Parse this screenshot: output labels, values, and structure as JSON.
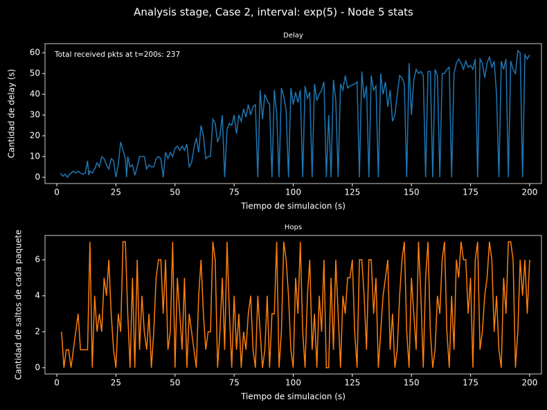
{
  "title": "Analysis stage, Case 2, interval: exp(5) - Node 5 stats",
  "chart_data": [
    {
      "type": "line",
      "title": "Delay",
      "xlabel": "Tiempo de simulacion (s)",
      "ylabel": "Cantidad de delay (s)",
      "annotation": "Total received pkts at t=200s: 237",
      "color": "#1f77b4",
      "xlim": [
        -5,
        205
      ],
      "xticks": [
        0,
        25,
        50,
        75,
        100,
        125,
        150,
        175,
        200
      ],
      "ylim": [
        -3,
        64.4
      ],
      "yticks": [
        0,
        10,
        20,
        30,
        40,
        50,
        60
      ],
      "x": [
        1.5,
        2.5,
        3.5,
        4.5,
        5.5,
        7,
        8,
        9,
        10,
        11,
        12,
        13,
        13.5,
        14,
        15,
        16,
        17,
        18,
        19,
        20,
        21,
        22,
        23,
        24,
        25,
        26,
        27,
        28,
        29,
        29.5,
        30,
        31,
        32,
        33,
        34,
        35,
        36,
        37,
        38,
        39,
        40,
        41,
        42,
        43,
        44,
        45,
        46,
        47,
        48,
        49,
        50,
        51,
        52,
        53,
        54,
        55,
        56,
        57,
        58,
        59,
        60,
        61,
        62,
        63,
        64,
        65,
        66,
        67,
        68,
        69,
        70,
        71,
        72,
        73,
        74,
        75,
        76,
        77,
        78,
        79,
        80,
        81,
        82,
        83,
        84,
        85,
        86,
        87,
        88,
        89,
        90,
        91,
        92,
        93,
        94,
        95,
        96,
        97,
        98,
        99,
        100,
        101,
        102,
        103,
        104,
        105,
        106,
        107,
        108,
        109,
        110,
        111,
        112,
        113,
        114,
        115,
        116,
        117,
        118,
        119,
        120,
        121,
        122,
        123,
        124,
        126,
        127,
        128,
        129,
        130,
        131,
        132,
        133,
        134,
        135,
        136,
        137,
        138,
        139,
        140,
        141,
        142,
        143,
        144,
        145,
        146,
        147,
        148,
        149,
        150,
        151,
        152,
        153,
        154,
        155,
        156,
        157,
        158,
        159,
        160,
        161,
        162,
        163,
        164,
        165,
        166,
        167,
        168,
        169,
        170,
        171,
        172,
        173,
        174,
        175,
        176,
        177,
        178,
        179,
        180,
        181,
        182,
        183,
        184,
        185,
        186,
        187,
        188,
        189,
        190,
        191,
        192,
        193,
        194,
        195,
        196,
        197,
        198,
        199,
        200
      ],
      "values": [
        2,
        0.5,
        1.5,
        0,
        1.5,
        3,
        2,
        3,
        2,
        1.5,
        2,
        8,
        1,
        3,
        2,
        4,
        7,
        5,
        10,
        9,
        6,
        4,
        9,
        8,
        0,
        6,
        17,
        13,
        9,
        0,
        10,
        5,
        6,
        1,
        5,
        10,
        10,
        10,
        4,
        6,
        5,
        5,
        9,
        10,
        9,
        0,
        12,
        9,
        12,
        10,
        14,
        15,
        13,
        15,
        13,
        16,
        5,
        7,
        14,
        19,
        12,
        25,
        20,
        9,
        10,
        10,
        28,
        26,
        17,
        20,
        30,
        0,
        23,
        26,
        25,
        30,
        21,
        30,
        27,
        33,
        29,
        35,
        30,
        34,
        35,
        0,
        42,
        28,
        40,
        37,
        35,
        0,
        42,
        31,
        0,
        43,
        39,
        32,
        0,
        43,
        35,
        41,
        36,
        42,
        0,
        44,
        38,
        41,
        0,
        45,
        37,
        40,
        42,
        46,
        0,
        30,
        0,
        47,
        37,
        0,
        45,
        42,
        49,
        43,
        44,
        45,
        46,
        0,
        51,
        38,
        44,
        0,
        49,
        42,
        44,
        0,
        50,
        40,
        46,
        34,
        42,
        27,
        30,
        40,
        49,
        48,
        45,
        0,
        55,
        30,
        47,
        52,
        50,
        51,
        49,
        0,
        51,
        51,
        0,
        52,
        49,
        0,
        50,
        50,
        52,
        53,
        0,
        50,
        55,
        57,
        55,
        52,
        56,
        53,
        54,
        52,
        57,
        0,
        57,
        55,
        48,
        55,
        58,
        53,
        56,
        40,
        0,
        56,
        52,
        57,
        0,
        56,
        52,
        50,
        61,
        60,
        0,
        59,
        57,
        59
      ]
    },
    {
      "type": "line",
      "title": "Hops",
      "xlabel": "Tiempo de simulacion (s)",
      "ylabel": "Cantidad de saltos de cada paquete",
      "color": "#ff7f0e",
      "xlim": [
        -5,
        205
      ],
      "xticks": [
        0,
        25,
        50,
        75,
        100,
        125,
        150,
        175,
        200
      ],
      "ylim": [
        -0.35,
        7.35
      ],
      "yticks": [
        0,
        2,
        4,
        6
      ],
      "x": [
        2,
        3,
        4,
        5,
        6,
        7,
        8,
        9,
        10,
        11,
        12,
        13,
        14,
        15,
        16,
        17,
        18,
        19,
        20,
        21,
        22,
        23,
        24,
        25,
        26,
        27,
        28,
        29,
        30,
        31,
        32,
        33,
        34,
        35,
        36,
        37,
        38,
        39,
        40,
        41,
        42,
        43,
        44,
        45,
        46,
        47,
        48,
        49,
        50,
        51,
        52,
        53,
        54,
        55,
        56,
        57,
        58,
        59,
        60,
        61,
        62,
        63,
        64,
        65,
        66,
        67,
        68,
        69,
        70,
        71,
        72,
        73,
        74,
        75,
        76,
        77,
        78,
        79,
        80,
        81,
        82,
        83,
        84,
        85,
        86,
        87,
        88,
        89,
        90,
        91,
        92,
        93,
        94,
        95,
        96,
        97,
        98,
        99,
        100,
        101,
        102,
        103,
        104,
        105,
        106,
        107,
        108,
        109,
        110,
        111,
        112,
        113,
        114,
        115,
        116,
        117,
        118,
        119,
        120,
        121,
        122,
        123,
        124,
        125,
        126,
        127,
        128,
        129,
        130,
        131,
        132,
        133,
        134,
        135,
        136,
        137,
        138,
        139,
        140,
        141,
        142,
        143,
        144,
        145,
        146,
        147,
        148,
        149,
        150,
        151,
        152,
        153,
        154,
        155,
        156,
        157,
        158,
        159,
        160,
        161,
        162,
        163,
        164,
        165,
        166,
        167,
        168,
        169,
        170,
        171,
        172,
        173,
        174,
        175,
        176,
        177,
        178,
        179,
        180,
        181,
        182,
        183,
        184,
        185,
        186,
        187,
        188,
        189,
        190,
        191,
        192,
        193,
        194,
        195,
        196,
        197,
        198,
        199,
        200
      ],
      "values": [
        2,
        0,
        1,
        1,
        0,
        1,
        2,
        3,
        1,
        1,
        1,
        1,
        7,
        0,
        4,
        2,
        3,
        2,
        5,
        4,
        6,
        3,
        1,
        0,
        3,
        2,
        7,
        7,
        3,
        0,
        5,
        0,
        6,
        1,
        4,
        2,
        1,
        3,
        0,
        2,
        5,
        6,
        6,
        3,
        6,
        1,
        2,
        7,
        0,
        5,
        3,
        1,
        5,
        0,
        3,
        2,
        1,
        0,
        4,
        6,
        3,
        1,
        2,
        2,
        7,
        6,
        0,
        2,
        5,
        1,
        7,
        3,
        0,
        4,
        1,
        3,
        0,
        2,
        1,
        3,
        4,
        1,
        0,
        4,
        2,
        0,
        1,
        4,
        0,
        3,
        3,
        7,
        0,
        2,
        7,
        6,
        4,
        1,
        0,
        5,
        3,
        7,
        2,
        0,
        4,
        6,
        1,
        3,
        0,
        4,
        2,
        6,
        0,
        0,
        5,
        1,
        6,
        3,
        0,
        4,
        3,
        5,
        5,
        6,
        2,
        0,
        6,
        6,
        4,
        1,
        6,
        6,
        3,
        5,
        0,
        2,
        4,
        5,
        6,
        1,
        3,
        0,
        1,
        4,
        6,
        7,
        2,
        0,
        5,
        3,
        1,
        7,
        4,
        0,
        5,
        7,
        2,
        0,
        1,
        4,
        3,
        6,
        7,
        2,
        0,
        4,
        1,
        6,
        5,
        7,
        6,
        6,
        3,
        5,
        0,
        6,
        7,
        1,
        2,
        4,
        5,
        7,
        6,
        2,
        4,
        1,
        0,
        5,
        3,
        7,
        7,
        6,
        0,
        2,
        6,
        4,
        6,
        3,
        6
      ]
    }
  ]
}
